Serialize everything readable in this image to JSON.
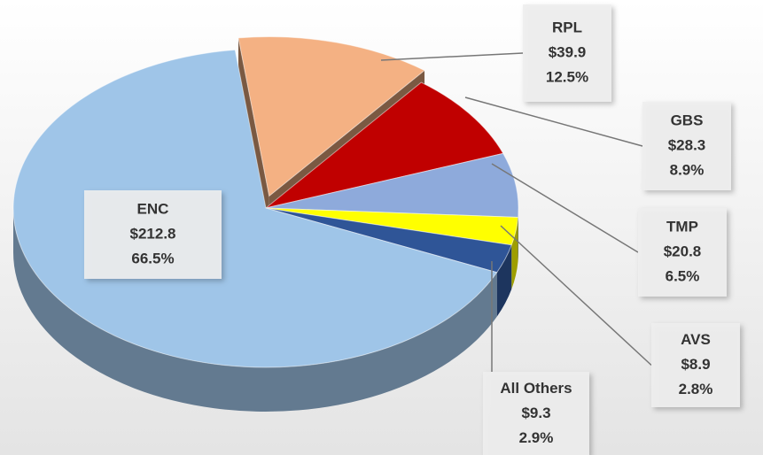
{
  "chart_data": {
    "type": "pie",
    "categories": [
      "RPL",
      "GBS",
      "TMP",
      "AVS",
      "All Others",
      "ENC"
    ],
    "values": [
      12.5,
      8.9,
      6.5,
      2.8,
      2.9,
      66.5
    ],
    "value_labels": [
      "12.5%",
      "8.9%",
      "6.5%",
      "2.8%",
      "2.9%",
      "66.5%"
    ],
    "amounts": [
      39.9,
      28.3,
      20.8,
      8.9,
      9.3,
      212.8
    ],
    "amount_labels": [
      "$39.9",
      "$28.3",
      "$20.8",
      "$8.9",
      "$9.3",
      "$212.8"
    ],
    "colors": [
      "#f4b183",
      "#c00000",
      "#8eaadb",
      "#ffff00",
      "#2f5597",
      "#9fc5e8"
    ],
    "exploded": [
      "RPL"
    ]
  }
}
